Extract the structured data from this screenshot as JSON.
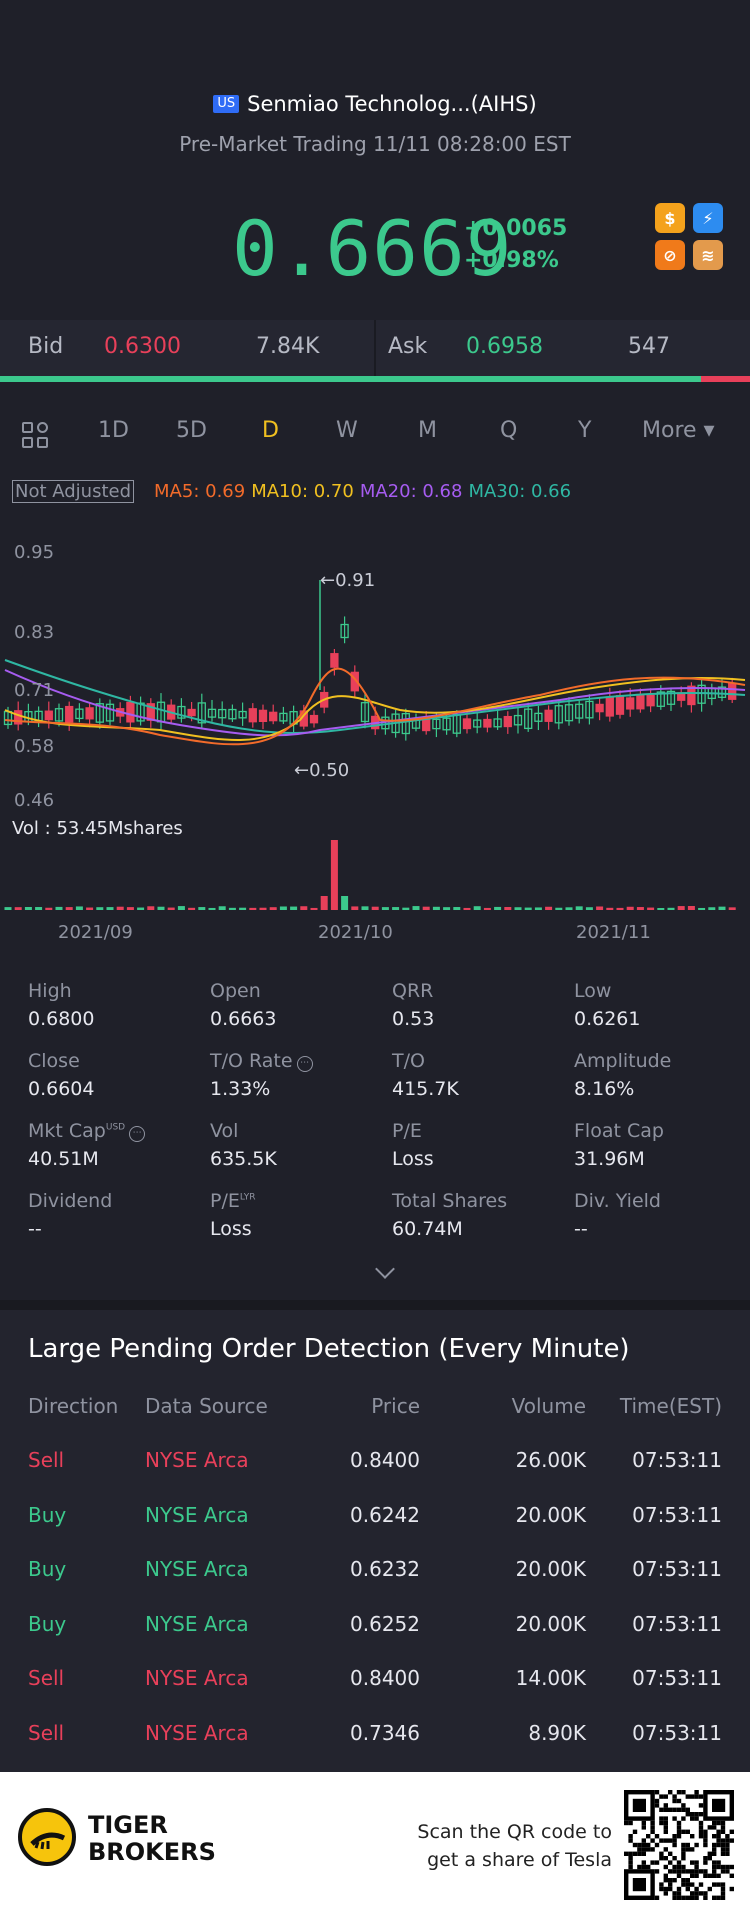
{
  "header": {
    "market_flag": "US",
    "title": "Senmiao Technolog...(AIHS)",
    "subtitle": "Pre-Market Trading 11/11 08:28:00 EST",
    "price": "0.6669",
    "change_abs": "+0.0065",
    "change_pct": "+0.98%",
    "icons": [
      "dollar-icon",
      "lightning-icon",
      "no-short-icon",
      "stack-icon"
    ]
  },
  "bidask": {
    "bid_label": "Bid",
    "bid_price": "0.6300",
    "bid_size": "7.84K",
    "ask_label": "Ask",
    "ask_price": "0.6958",
    "ask_size": "547",
    "bid_share": 0.935
  },
  "tabs": [
    "1D",
    "5D",
    "D",
    "W",
    "M",
    "Q",
    "Y",
    "More ▾"
  ],
  "active_tab": "D",
  "ma": {
    "not_adjusted": "Not Adjusted",
    "ma5": "MA5: 0.69",
    "ma10": "MA10: 0.70",
    "ma20": "MA20: 0.68",
    "ma30": "MA30: 0.66",
    "colors": {
      "ma5": "#f26b2a",
      "ma10": "#f0c020",
      "ma20": "#a65cf0",
      "ma30": "#2fb7a3"
    }
  },
  "chart_data": {
    "type": "candlestick",
    "y_ticks": [
      "0.95",
      "0.83",
      "0.71",
      "0.58",
      "0.46"
    ],
    "ylim": [
      0.46,
      0.95
    ],
    "x_ticks": [
      "2021/09",
      "2021/10",
      "2021/11"
    ],
    "high_marker": "0.91",
    "low_marker": "0.50",
    "vol_label": "Vol  : 53.45Mshares",
    "up_color": "#3cc98d",
    "down_color": "#e8405a"
  },
  "stats": [
    {
      "k": "High",
      "v": "0.6800"
    },
    {
      "k": "Open",
      "v": "0.6663"
    },
    {
      "k": "QRR",
      "v": "0.53"
    },
    {
      "k": "Low",
      "v": "0.6261"
    },
    {
      "k": "Close",
      "v": "0.6604"
    },
    {
      "k": "T/O Rate",
      "v": "1.33%"
    },
    {
      "k": "T/O",
      "v": "415.7K"
    },
    {
      "k": "Amplitude",
      "v": "8.16%"
    },
    {
      "k": "Mkt Cap",
      "v": "40.51M"
    },
    {
      "k": "Vol",
      "v": "635.5K"
    },
    {
      "k": "P/E",
      "v": "Loss"
    },
    {
      "k": "Float Cap",
      "v": "31.96M"
    },
    {
      "k": "Dividend",
      "v": "--"
    },
    {
      "k": "P/E",
      "v": "Loss"
    },
    {
      "k": "Total Shares",
      "v": "60.74M"
    },
    {
      "k": "Div. Yield",
      "v": "--"
    }
  ],
  "stat_sups": {
    "usd": "USD",
    "lyr": "LYR"
  },
  "orders": {
    "title": "Large Pending Order Detection (Every Minute)",
    "headers": {
      "direction": "Direction",
      "source": "Data Source",
      "price": "Price",
      "volume": "Volume",
      "time": "Time(EST)"
    },
    "rows": [
      {
        "dir": "Sell",
        "src": "NYSE Arca",
        "price": "0.8400",
        "vol": "26.00K",
        "time": "07:53:11"
      },
      {
        "dir": "Buy",
        "src": "NYSE Arca",
        "price": "0.6242",
        "vol": "20.00K",
        "time": "07:53:11"
      },
      {
        "dir": "Buy",
        "src": "NYSE Arca",
        "price": "0.6232",
        "vol": "20.00K",
        "time": "07:53:11"
      },
      {
        "dir": "Buy",
        "src": "NYSE Arca",
        "price": "0.6252",
        "vol": "20.00K",
        "time": "07:53:11"
      },
      {
        "dir": "Sell",
        "src": "NYSE Arca",
        "price": "0.8400",
        "vol": "14.00K",
        "time": "07:53:11"
      },
      {
        "dir": "Sell",
        "src": "NYSE Arca",
        "price": "0.7346",
        "vol": "8.90K",
        "time": "07:53:11"
      }
    ]
  },
  "footer": {
    "brand_line1": "TIGER",
    "brand_line2": "BROKERS",
    "scan_line1": "Scan the QR code to",
    "scan_line2": "get a share of Tesla"
  }
}
